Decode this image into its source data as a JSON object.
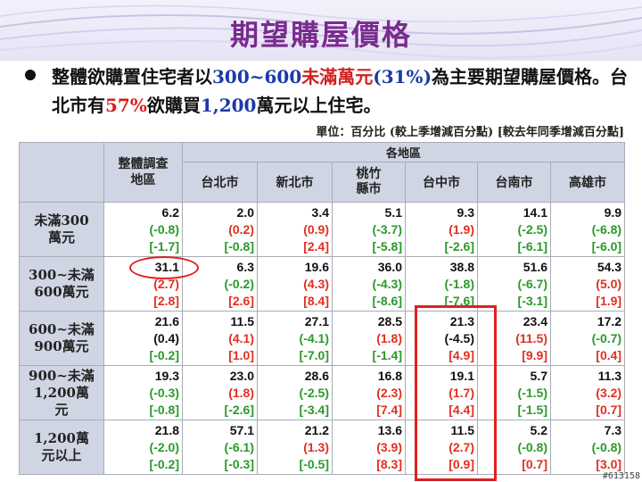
{
  "slide": {
    "title": "期望購屋價格",
    "bullet_parts": [
      "整體欲購置住宅者以",
      "300~600",
      "未滿萬元",
      "(31%)",
      "為主要期望購屋價格。台北市有",
      "57%",
      "欲購買",
      "1,200",
      "萬元以上住宅。"
    ],
    "unit_note": "單位：百分比 (較上季增減百分點) [較去年同季增減百分點]",
    "watermark": "#613158"
  },
  "table": {
    "overall_header": "整體調查地區",
    "region_header": "各地區",
    "cities": [
      "台北市",
      "新北市",
      "桃竹縣市",
      "台中市",
      "台南市",
      "高雄市"
    ],
    "rows": [
      {
        "label": "未滿300萬元",
        "cells": [
          {
            "v": "6.2",
            "q": "(-0.8)",
            "qc": "g",
            "y": "[-1.7]",
            "yc": "g"
          },
          {
            "v": "2.0",
            "q": "(0.2)",
            "qc": "r",
            "y": "[-0.8]",
            "yc": "g"
          },
          {
            "v": "3.4",
            "q": "(0.9)",
            "qc": "r",
            "y": "[2.4]",
            "yc": "r"
          },
          {
            "v": "5.1",
            "q": "(-3.7)",
            "qc": "g",
            "y": "[-5.8]",
            "yc": "g"
          },
          {
            "v": "9.3",
            "q": "(1.9)",
            "qc": "r",
            "y": "[-2.6]",
            "yc": "g"
          },
          {
            "v": "14.1",
            "q": "(-2.5)",
            "qc": "g",
            "y": "[-6.1]",
            "yc": "g"
          },
          {
            "v": "9.9",
            "q": "(-6.8)",
            "qc": "g",
            "y": "[-6.0]",
            "yc": "g"
          }
        ]
      },
      {
        "label": "300~未滿600萬元",
        "cells": [
          {
            "v": "31.1",
            "q": "(2.7)",
            "qc": "r",
            "y": "[2.8]",
            "yc": "r"
          },
          {
            "v": "6.3",
            "q": "(-0.2)",
            "qc": "g",
            "y": "[2.6]",
            "yc": "r"
          },
          {
            "v": "19.6",
            "q": "(4.3)",
            "qc": "r",
            "y": "[8.4]",
            "yc": "r"
          },
          {
            "v": "36.0",
            "q": "(-4.3)",
            "qc": "g",
            "y": "[-8.6]",
            "yc": "g"
          },
          {
            "v": "38.8",
            "q": "(-1.8)",
            "qc": "g",
            "y": "[-7.6]",
            "yc": "g"
          },
          {
            "v": "51.6",
            "q": "(-6.7)",
            "qc": "g",
            "y": "[-3.1]",
            "yc": "g"
          },
          {
            "v": "54.3",
            "q": "(5.0)",
            "qc": "r",
            "y": "[1.9]",
            "yc": "r"
          }
        ]
      },
      {
        "label": "600~未滿900萬元",
        "cells": [
          {
            "v": "21.6",
            "q": "(0.4)",
            "qc": "k",
            "y": "[-0.2]",
            "yc": "g"
          },
          {
            "v": "11.5",
            "q": "(4.1)",
            "qc": "r",
            "y": "[1.0]",
            "yc": "r"
          },
          {
            "v": "27.1",
            "q": "(-4.1)",
            "qc": "g",
            "y": "[-7.0]",
            "yc": "g"
          },
          {
            "v": "28.5",
            "q": "(1.8)",
            "qc": "r",
            "y": "[-1.4]",
            "yc": "g"
          },
          {
            "v": "21.3",
            "q": "(-4.5)",
            "qc": "k",
            "y": "[4.9]",
            "yc": "r"
          },
          {
            "v": "23.4",
            "q": "(11.5)",
            "qc": "r",
            "y": "[9.9]",
            "yc": "r"
          },
          {
            "v": "17.2",
            "q": "(-0.7)",
            "qc": "g",
            "y": "[0.4]",
            "yc": "r"
          }
        ]
      },
      {
        "label": "900~未滿1,200萬元",
        "cells": [
          {
            "v": "19.3",
            "q": "(-0.3)",
            "qc": "g",
            "y": "[-0.8]",
            "yc": "g"
          },
          {
            "v": "23.0",
            "q": "(1.8)",
            "qc": "r",
            "y": "[-2.6]",
            "yc": "g"
          },
          {
            "v": "28.6",
            "q": "(-2.5)",
            "qc": "g",
            "y": "[-3.4]",
            "yc": "g"
          },
          {
            "v": "16.8",
            "q": "(2.3)",
            "qc": "r",
            "y": "[7.4]",
            "yc": "r"
          },
          {
            "v": "19.1",
            "q": "(1.7)",
            "qc": "r",
            "y": "[4.4]",
            "yc": "r"
          },
          {
            "v": "5.7",
            "q": "(-1.5)",
            "qc": "g",
            "y": "[-1.5]",
            "yc": "g"
          },
          {
            "v": "11.3",
            "q": "(3.2)",
            "qc": "r",
            "y": "[0.7]",
            "yc": "r"
          }
        ]
      },
      {
        "label": "1,200萬元以上",
        "cells": [
          {
            "v": "21.8",
            "q": "(-2.0)",
            "qc": "g",
            "y": "[-0.2]",
            "yc": "g"
          },
          {
            "v": "57.1",
            "q": "(-6.1)",
            "qc": "g",
            "y": "[-0.3]",
            "yc": "g"
          },
          {
            "v": "21.2",
            "q": "(1.3)",
            "qc": "r",
            "y": "[-0.5]",
            "yc": "g"
          },
          {
            "v": "13.6",
            "q": "(3.9)",
            "qc": "r",
            "y": "[8.3]",
            "yc": "r"
          },
          {
            "v": "11.5",
            "q": "(2.7)",
            "qc": "r",
            "y": "[0.9]",
            "yc": "r"
          },
          {
            "v": "5.2",
            "q": "(-0.8)",
            "qc": "g",
            "y": "[0.7]",
            "yc": "r"
          },
          {
            "v": "7.3",
            "q": "(-0.8)",
            "qc": "g",
            "y": "[3.0]",
            "yc": "r"
          }
        ]
      }
    ]
  },
  "colors": {
    "title": "#7a2c8e",
    "increase": "#e03020",
    "decrease": "#2a9a2a",
    "highlight": "#e02020",
    "header_bg": "#cfd5e3"
  }
}
